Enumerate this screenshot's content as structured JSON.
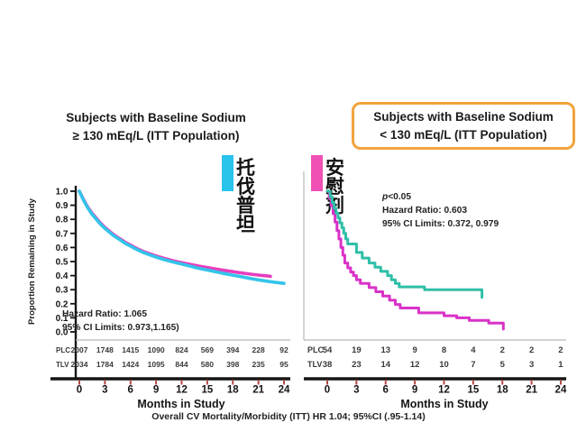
{
  "titles": {
    "left_line1": "Subjects with Baseline Sodium",
    "left_line2": "≥ 130 mEq/L (ITT Population)",
    "right_line1": "Subjects with Baseline Sodium",
    "right_line2": "< 130 mEq/L (ITT Population)",
    "right_box_color": "#F2A33C"
  },
  "legend": {
    "tolvaptan_label": "托伐普坦",
    "placebo_label": "安慰剂",
    "tolvaptan_color": "#29C3EC",
    "placebo_color": "#F050B5"
  },
  "caption": "Overall CV Mortality/Morbidity (ITT) HR 1.04; 95%CI (.95-1.14)",
  "chart_data": [
    {
      "type": "line",
      "panel": "left",
      "title": "Subjects with Baseline Sodium ≥ 130 mEq/L (ITT Population)",
      "xlabel": "Months in Study",
      "ylabel": "Proportion Remaining in Study",
      "xlim": [
        0,
        24
      ],
      "ylim": [
        0.0,
        1.0
      ],
      "xticks": [
        0,
        3,
        6,
        9,
        12,
        15,
        18,
        21,
        24
      ],
      "yticks": [
        1.0,
        0.9,
        0.8,
        0.7,
        0.6,
        0.5,
        0.4,
        0.3,
        0.2,
        0.1,
        0.0
      ],
      "grid": false,
      "annotations": {
        "hazard_ratio": "Hazard Ratio: 1.065",
        "ci": "95% CI Limits: 0.973,1.165)"
      },
      "series": [
        {
          "id": "tolvaptan",
          "name": "TLV 托伐普坦 (tolvaptan)",
          "color": "#33C4E9",
          "points": [
            [
              0,
              1.0
            ],
            [
              0.5,
              0.935
            ],
            [
              1,
              0.88
            ],
            [
              1.5,
              0.835
            ],
            [
              2,
              0.8
            ],
            [
              2.5,
              0.765
            ],
            [
              3,
              0.735
            ],
            [
              3.5,
              0.71
            ],
            [
              4,
              0.685
            ],
            [
              4.5,
              0.665
            ],
            [
              5,
              0.645
            ],
            [
              5.5,
              0.625
            ],
            [
              6,
              0.61
            ],
            [
              6.5,
              0.593
            ],
            [
              7,
              0.578
            ],
            [
              7.5,
              0.565
            ],
            [
              8,
              0.553
            ],
            [
              8.5,
              0.542
            ],
            [
              9,
              0.532
            ],
            [
              9.5,
              0.522
            ],
            [
              10,
              0.513
            ],
            [
              11,
              0.497
            ],
            [
              12,
              0.482
            ],
            [
              13,
              0.467
            ],
            [
              14,
              0.452
            ],
            [
              15,
              0.44
            ],
            [
              16,
              0.427
            ],
            [
              17,
              0.415
            ],
            [
              18,
              0.403
            ],
            [
              19,
              0.392
            ],
            [
              20,
              0.38
            ],
            [
              21,
              0.37
            ],
            [
              22,
              0.36
            ],
            [
              23,
              0.352
            ],
            [
              24,
              0.345
            ]
          ]
        },
        {
          "id": "placebo",
          "name": "PLC 安慰剂 (placebo)",
          "color": "#E83DBE",
          "points": [
            [
              0,
              1.0
            ],
            [
              0.5,
              0.94
            ],
            [
              1,
              0.885
            ],
            [
              1.5,
              0.842
            ],
            [
              2,
              0.807
            ],
            [
              2.5,
              0.772
            ],
            [
              3,
              0.742
            ],
            [
              3.5,
              0.717
            ],
            [
              4,
              0.692
            ],
            [
              4.5,
              0.672
            ],
            [
              5,
              0.652
            ],
            [
              5.5,
              0.632
            ],
            [
              6,
              0.617
            ],
            [
              6.5,
              0.6
            ],
            [
              7,
              0.585
            ],
            [
              7.5,
              0.572
            ],
            [
              8,
              0.56
            ],
            [
              8.5,
              0.55
            ],
            [
              9,
              0.54
            ],
            [
              9.5,
              0.531
            ],
            [
              10,
              0.522
            ],
            [
              11,
              0.506
            ],
            [
              12,
              0.492
            ],
            [
              13,
              0.48
            ],
            [
              14,
              0.468
            ],
            [
              15,
              0.458
            ],
            [
              16,
              0.447
            ],
            [
              17,
              0.437
            ],
            [
              18,
              0.428
            ],
            [
              19,
              0.419
            ],
            [
              20,
              0.411
            ],
            [
              21,
              0.404
            ],
            [
              22,
              0.398
            ],
            [
              22.4,
              0.395
            ]
          ]
        }
      ],
      "risk_table": {
        "rows": [
          {
            "label": "PLC",
            "values": [
              "2007",
              "1748",
              "1415",
              "1090",
              "824",
              "569",
              "394",
              "228",
              "92"
            ]
          },
          {
            "label": "TLV",
            "values": [
              "2034",
              "1784",
              "1424",
              "1095",
              "844",
              "580",
              "398",
              "235",
              "95"
            ]
          }
        ]
      }
    },
    {
      "type": "step",
      "panel": "right",
      "title": "Subjects with Baseline Sodium < 130 mEq/L (ITT Population)",
      "xlabel": "Months in Study",
      "ylabel": "",
      "xlim": [
        0,
        24
      ],
      "ylim": [
        0.0,
        1.0
      ],
      "xticks": [
        0,
        3,
        6,
        9,
        12,
        15,
        18,
        21,
        24
      ],
      "yticks": [],
      "grid": false,
      "annotations": {
        "p_label": "p",
        "p_value": "<0.05",
        "hazard_ratio": "Hazard Ratio: 0.603",
        "ci": "95% CI Limits: 0.372, 0.979"
      },
      "series": [
        {
          "id": "tolvaptan",
          "name": "TLV 托伐普坦 (tolvaptan)",
          "color": "#2FBFA8",
          "points": [
            [
              0,
              1.0
            ],
            [
              0.3,
              0.96
            ],
            [
              0.5,
              0.92
            ],
            [
              0.7,
              0.88
            ],
            [
              0.9,
              0.845
            ],
            [
              1.1,
              0.81
            ],
            [
              1.3,
              0.775
            ],
            [
              1.5,
              0.74
            ],
            [
              1.7,
              0.7
            ],
            [
              1.9,
              0.66
            ],
            [
              2.1,
              0.625
            ],
            [
              3.0,
              0.565
            ],
            [
              3.6,
              0.525
            ],
            [
              4.3,
              0.49
            ],
            [
              4.9,
              0.46
            ],
            [
              5.5,
              0.43
            ],
            [
              6.2,
              0.4
            ],
            [
              6.6,
              0.37
            ],
            [
              7.0,
              0.345
            ],
            [
              7.4,
              0.32
            ],
            [
              10.0,
              0.3
            ],
            [
              15.9,
              0.245
            ]
          ]
        },
        {
          "id": "placebo",
          "name": "PLC 安慰剂 (placebo)",
          "color": "#D932C8",
          "points": [
            [
              0,
              1.0
            ],
            [
              0.2,
              0.95
            ],
            [
              0.4,
              0.895
            ],
            [
              0.6,
              0.84
            ],
            [
              0.8,
              0.78
            ],
            [
              1.0,
              0.72
            ],
            [
              1.2,
              0.66
            ],
            [
              1.4,
              0.6
            ],
            [
              1.6,
              0.545
            ],
            [
              1.8,
              0.49
            ],
            [
              2.1,
              0.455
            ],
            [
              2.4,
              0.425
            ],
            [
              2.7,
              0.4
            ],
            [
              3.0,
              0.37
            ],
            [
              3.4,
              0.345
            ],
            [
              4.3,
              0.315
            ],
            [
              5.0,
              0.285
            ],
            [
              5.7,
              0.255
            ],
            [
              6.4,
              0.225
            ],
            [
              7.0,
              0.195
            ],
            [
              7.5,
              0.17
            ],
            [
              9.4,
              0.135
            ],
            [
              12.0,
              0.115
            ],
            [
              13.3,
              0.1
            ],
            [
              14.6,
              0.082
            ],
            [
              16.6,
              0.062
            ],
            [
              18.1,
              0.02
            ]
          ]
        }
      ],
      "risk_table": {
        "rows": [
          {
            "label": "PLC",
            "values": [
              "54",
              "19",
              "13",
              "9",
              "8",
              "4",
              "2",
              "2",
              "2"
            ]
          },
          {
            "label": "TLV",
            "values": [
              "38",
              "23",
              "14",
              "12",
              "10",
              "7",
              "5",
              "3",
              "1"
            ]
          }
        ]
      }
    }
  ]
}
